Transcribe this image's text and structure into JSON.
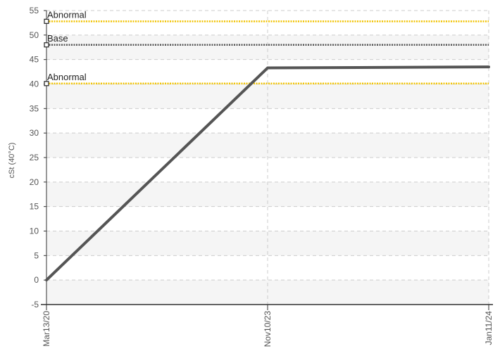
{
  "chart_data": {
    "type": "line",
    "ylabel": "cSt (40°C)",
    "ylim": [
      -5,
      55
    ],
    "yticks": [
      -5,
      0,
      5,
      10,
      15,
      20,
      25,
      30,
      35,
      40,
      45,
      50,
      55
    ],
    "x_tick_labels": [
      "Mar13/20",
      "Nov10/23",
      "Jan11/24"
    ],
    "grid": true,
    "series": [
      {
        "x": [
          "Mar13/20",
          "Nov10/23",
          "Jan11/24"
        ],
        "values": [
          0,
          43.3,
          43.5
        ],
        "color": "#555555"
      }
    ],
    "reference_lines": [
      {
        "label": "Abnormal",
        "value": 52.8,
        "color": "#f2c300",
        "style": "dotted"
      },
      {
        "label": "Base",
        "value": 48,
        "color": "#555555",
        "style": "dotted"
      },
      {
        "label": "Abnormal",
        "value": 40.1,
        "color": "#f2c300",
        "style": "dotted"
      }
    ],
    "colors": {
      "band": "#f5f5f5",
      "grid": "#cccccc",
      "axis": "#333333"
    }
  }
}
